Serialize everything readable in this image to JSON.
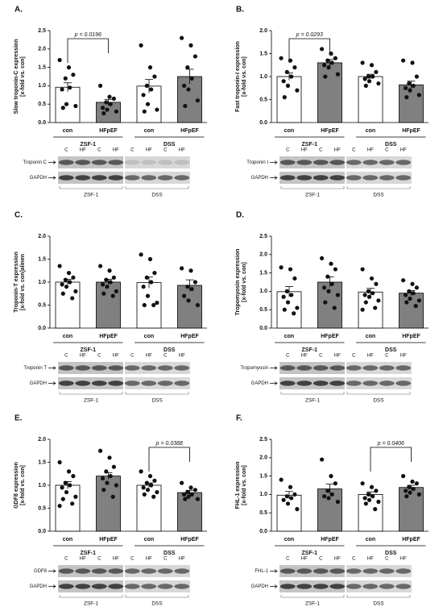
{
  "chart_data": [
    {
      "type": "bar",
      "panel": "A.",
      "ylabel": [
        "Slow troponin-C expression",
        "[x-fold vs. con]"
      ],
      "categories": [
        "con",
        "HFpEF",
        "con",
        "HFpEF"
      ],
      "groups": [
        "ZSF-1",
        "DSS"
      ],
      "values": [
        0.96,
        0.55,
        0.99,
        1.25
      ],
      "errors": [
        0.12,
        0.08,
        0.18,
        0.2
      ],
      "points": [
        [
          1.7,
          1.5,
          1.3,
          1.2,
          0.95,
          0.9,
          0.5,
          0.45,
          0.4
        ],
        [
          1.0,
          0.7,
          0.65,
          0.55,
          0.5,
          0.4,
          0.35,
          0.3,
          0.25
        ],
        [
          2.1,
          1.5,
          1.25,
          1.0,
          0.9,
          0.75,
          0.5,
          0.35,
          0.3
        ],
        [
          2.3,
          2.1,
          1.8,
          1.5,
          1.2,
          1.0,
          0.9,
          0.6,
          0.45
        ]
      ],
      "colors": [
        "#ffffff",
        "#808080",
        "#ffffff",
        "#808080"
      ],
      "ylim": [
        0,
        2.5
      ],
      "yticks": [
        {
          "value": 0,
          "label": "0.0"
        },
        0.5,
        {
          "value": 1,
          "label": "1.0"
        },
        1.5,
        {
          "value": 2,
          "label": "2.0"
        },
        2.5
      ],
      "annotation": {
        "text": "p = 0.0196",
        "group": "ZSF-1"
      },
      "blot": {
        "lanes": [
          "C",
          "HF",
          "C",
          "HF",
          "C",
          "HF",
          "C",
          "HF"
        ],
        "rows": [
          "Troponin C",
          "GAPDH"
        ],
        "groups": [
          "ZSF-1",
          "DSS"
        ]
      }
    },
    {
      "type": "bar",
      "panel": "B.",
      "ylabel": [
        "Fast troponin-I expression",
        "[x-fold vs. con]"
      ],
      "categories": [
        "con",
        "HFpEF",
        "con",
        "HFpEF"
      ],
      "groups": [
        "ZSF-1",
        "DSS"
      ],
      "values": [
        1.0,
        1.3,
        1.0,
        0.82
      ],
      "errors": [
        0.08,
        0.07,
        0.05,
        0.08
      ],
      "points": [
        [
          1.4,
          1.35,
          1.2,
          1.1,
          1.0,
          0.9,
          0.8,
          0.7,
          0.55
        ],
        [
          1.6,
          1.5,
          1.4,
          1.35,
          1.3,
          1.25,
          1.2,
          1.05,
          1.0
        ],
        [
          1.3,
          1.25,
          1.1,
          1.0,
          1.0,
          0.95,
          0.9,
          0.85,
          0.8
        ],
        [
          1.35,
          1.3,
          1.0,
          0.85,
          0.8,
          0.75,
          0.7,
          0.6,
          0.55
        ]
      ],
      "colors": [
        "#ffffff",
        "#808080",
        "#ffffff",
        "#808080"
      ],
      "ylim": [
        0,
        2
      ],
      "yticks": [
        {
          "value": 0,
          "label": "0.0"
        },
        0.5,
        {
          "value": 1,
          "label": "1.0"
        },
        1.5,
        {
          "value": 2,
          "label": "2.0"
        }
      ],
      "annotation": {
        "text": "p = 0.0293",
        "group": "ZSF-1"
      },
      "blot": {
        "lanes": [
          "C",
          "HF",
          "C",
          "HF",
          "C",
          "HF",
          "C",
          "HF"
        ],
        "rows": [
          "Troponin I",
          "GAPDH"
        ],
        "groups": [
          "ZSF-1",
          "DSS"
        ]
      }
    },
    {
      "type": "bar",
      "panel": "C.",
      "ylabel": [
        "Troponin-T expression",
        "[x-fold vs. con]alinen"
      ],
      "categories": [
        "con",
        "HFpEF",
        "con",
        "HFpEF"
      ],
      "groups": [
        "ZSF-1",
        "DSS"
      ],
      "values": [
        1.0,
        1.0,
        0.99,
        0.93
      ],
      "errors": [
        0.06,
        0.06,
        0.12,
        0.12
      ],
      "points": [
        [
          1.35,
          1.2,
          1.1,
          1.05,
          1.0,
          0.95,
          0.9,
          0.8,
          0.75,
          0.65
        ],
        [
          1.35,
          1.25,
          1.1,
          1.05,
          1.0,
          0.95,
          0.9,
          0.8,
          0.75,
          0.7
        ],
        [
          1.6,
          1.5,
          1.2,
          1.1,
          1.0,
          0.9,
          0.7,
          0.55,
          0.5,
          0.5
        ],
        [
          1.3,
          1.25,
          1.0,
          0.9,
          0.85,
          0.7,
          0.6,
          0.5
        ]
      ],
      "colors": [
        "#ffffff",
        "#808080",
        "#ffffff",
        "#808080"
      ],
      "ylim": [
        0,
        2
      ],
      "yticks": [
        {
          "value": 0,
          "label": "0.0"
        },
        0.5,
        {
          "value": 1,
          "label": "1.0"
        },
        1.5,
        {
          "value": 2,
          "label": "2.0"
        }
      ],
      "blot": {
        "lanes": [
          "C",
          "HF",
          "C",
          "HF",
          "C",
          "HF",
          "C",
          "HF"
        ],
        "rows": [
          "Troponin T",
          "GAPDH"
        ],
        "groups": [
          "ZSF-1",
          "DSS"
        ]
      }
    },
    {
      "type": "bar",
      "panel": "D.",
      "ylabel": [
        "Tropomyosin expression",
        "[x-fold vs. con]"
      ],
      "categories": [
        "con",
        "HFpEF",
        "con",
        "HFpEF"
      ],
      "groups": [
        "ZSF-1",
        "DSS"
      ],
      "values": [
        0.99,
        1.25,
        0.98,
        0.95
      ],
      "errors": [
        0.14,
        0.14,
        0.1,
        0.07
      ],
      "points": [
        [
          1.65,
          1.6,
          1.35,
          1.0,
          0.9,
          0.85,
          0.7,
          0.55,
          0.5,
          0.4
        ],
        [
          1.9,
          1.75,
          1.6,
          1.4,
          1.2,
          1.1,
          1.0,
          0.9,
          0.7,
          0.55
        ],
        [
          1.6,
          1.35,
          1.2,
          1.0,
          0.95,
          0.9,
          0.85,
          0.75,
          0.7,
          0.55,
          0.5
        ],
        [
          1.3,
          1.2,
          1.1,
          1.0,
          0.95,
          0.9,
          0.8,
          0.75,
          0.7,
          0.6
        ]
      ],
      "colors": [
        "#ffffff",
        "#808080",
        "#ffffff",
        "#808080"
      ],
      "ylim": [
        0,
        2.5
      ],
      "yticks": [
        {
          "value": 0,
          "label": "0.0"
        },
        0.5,
        {
          "value": 1,
          "label": "1.0"
        },
        1.5,
        {
          "value": 2,
          "label": "2.0"
        },
        2.5
      ],
      "blot": {
        "lanes": [
          "C",
          "HF",
          "C",
          "HF",
          "C",
          "HF",
          "C",
          "HF"
        ],
        "rows": [
          "Tropomyosin",
          "GAPDH"
        ],
        "groups": [
          "ZSF-1",
          "DSS"
        ]
      }
    },
    {
      "type": "bar",
      "panel": "E.",
      "ylabel": [
        "GDF8 expression",
        "[x-fold vs. con]"
      ],
      "categories": [
        "con",
        "HFpEF",
        "con",
        "HFpEF"
      ],
      "groups": [
        "ZSF-1",
        "DSS"
      ],
      "values": [
        1.0,
        1.2,
        1.0,
        0.84
      ],
      "errors": [
        0.08,
        0.07,
        0.05,
        0.05
      ],
      "points": [
        [
          1.5,
          1.3,
          1.2,
          1.05,
          1.0,
          0.95,
          0.85,
          0.75,
          0.7,
          0.6,
          0.55
        ],
        [
          1.75,
          1.6,
          1.4,
          1.3,
          1.2,
          1.15,
          1.05,
          1.0,
          0.9,
          0.75
        ],
        [
          1.3,
          1.2,
          1.1,
          1.05,
          1.0,
          0.95,
          0.9,
          0.85,
          0.8,
          0.75
        ],
        [
          1.05,
          0.95,
          0.9,
          0.85,
          0.8,
          0.8,
          0.75,
          0.7,
          0.7
        ]
      ],
      "colors": [
        "#ffffff",
        "#808080",
        "#ffffff",
        "#808080"
      ],
      "ylim": [
        0,
        2
      ],
      "yticks": [
        {
          "value": 0,
          "label": "0.0"
        },
        0.5,
        {
          "value": 1,
          "label": "1.0"
        },
        1.5,
        {
          "value": 2,
          "label": "2.0"
        }
      ],
      "annotation": {
        "text": "p = 0.0388",
        "group": "DSS"
      },
      "blot": {
        "lanes": [
          "C",
          "HF",
          "C",
          "HF",
          "C",
          "HF",
          "C",
          "HF"
        ],
        "rows": [
          "GDF8",
          "GAPDH"
        ],
        "groups": [
          "ZSF-1",
          "DSS"
        ]
      }
    },
    {
      "type": "bar",
      "panel": "F.",
      "ylabel": [
        "FHL-1 expression",
        "[x-fold vs. con]"
      ],
      "categories": [
        "con",
        "HFpEF",
        "con",
        "HFpEF"
      ],
      "groups": [
        "ZSF-1",
        "DSS"
      ],
      "values": [
        0.98,
        1.15,
        1.0,
        1.19
      ],
      "errors": [
        0.1,
        0.13,
        0.07,
        0.06
      ],
      "points": [
        [
          1.4,
          1.2,
          1.0,
          0.95,
          0.9,
          0.85,
          0.75,
          0.6
        ],
        [
          1.95,
          1.5,
          1.3,
          1.1,
          1.0,
          0.95,
          0.9,
          0.8
        ],
        [
          1.3,
          1.2,
          1.1,
          1.0,
          0.95,
          0.9,
          0.85,
          0.8,
          0.75,
          0.6
        ],
        [
          1.5,
          1.35,
          1.3,
          1.2,
          1.15,
          1.1,
          1.05,
          1.0,
          0.95
        ]
      ],
      "colors": [
        "#ffffff",
        "#808080",
        "#ffffff",
        "#808080"
      ],
      "ylim": [
        0,
        2.5
      ],
      "yticks": [
        {
          "value": 0,
          "label": "0.0"
        },
        0.5,
        {
          "value": 1,
          "label": "1.0"
        },
        1.5,
        {
          "value": 2,
          "label": "2.0"
        },
        2.5
      ],
      "annotation": {
        "text": "p = 0.0406",
        "group": "DSS"
      },
      "blot": {
        "lanes": [
          "C",
          "HF",
          "C",
          "HF",
          "C",
          "HF",
          "C",
          "HF"
        ],
        "rows": [
          "FHL-1",
          "GAPDH"
        ],
        "groups": [
          "ZSF-1",
          "DSS"
        ]
      }
    }
  ]
}
